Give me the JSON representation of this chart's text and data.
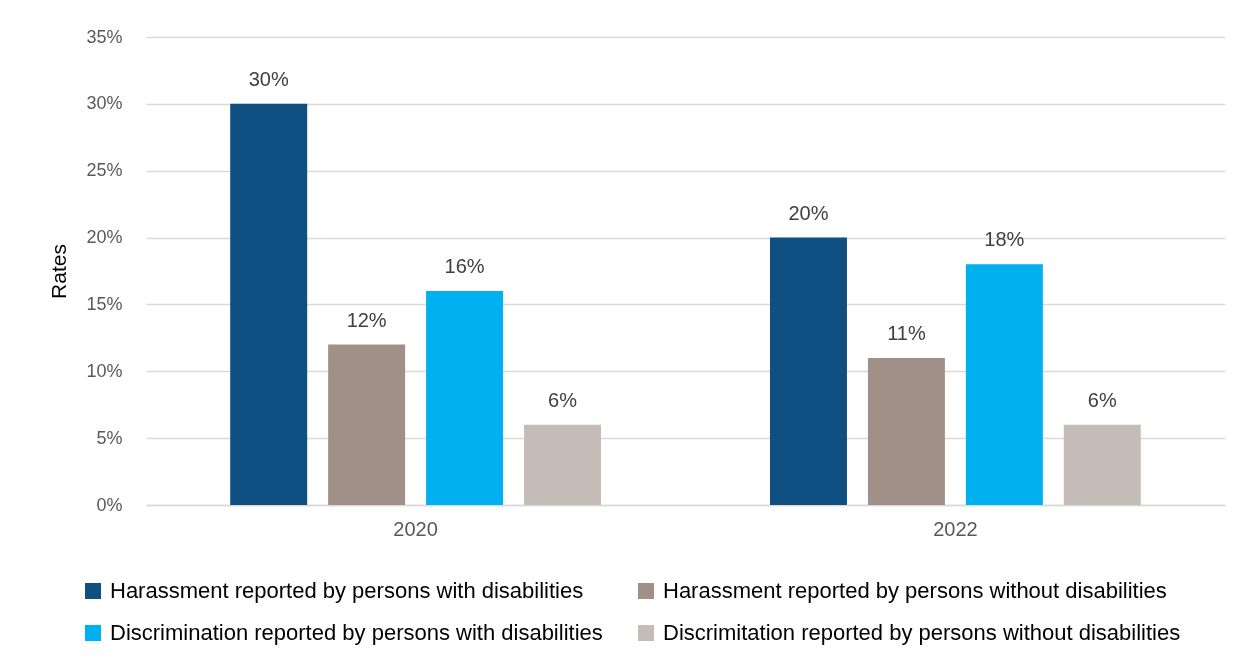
{
  "chart_data": {
    "type": "bar",
    "ylabel": "Rates",
    "categories": [
      "2020",
      "2022"
    ],
    "series": [
      {
        "name": "Harassment reported by persons with disabilities",
        "color": "#104f81",
        "values": [
          30,
          20
        ],
        "value_labels": [
          "30%",
          "20%"
        ]
      },
      {
        "name": "Harassment reported by persons without disabilities",
        "color": "#a09087",
        "values": [
          12,
          11
        ],
        "value_labels": [
          "12%",
          "11%"
        ]
      },
      {
        "name": "Discrimination reported by persons with disabilities",
        "color": "#00b0f0",
        "values": [
          16,
          18
        ],
        "value_labels": [
          "16%",
          "18%"
        ]
      },
      {
        "name": "Discrimitation reported by persons without disabilities",
        "color": "#c5bcb7",
        "values": [
          6,
          6
        ],
        "value_labels": [
          "6%",
          "6%"
        ]
      }
    ],
    "ylim": [
      0,
      35
    ],
    "yticks": [
      {
        "value": 0,
        "label": "0%"
      },
      {
        "value": 5,
        "label": "5%"
      },
      {
        "value": 10,
        "label": "10%"
      },
      {
        "value": 15,
        "label": "15%"
      },
      {
        "value": 20,
        "label": "20%"
      },
      {
        "value": 25,
        "label": "25%"
      },
      {
        "value": 30,
        "label": "30%"
      },
      {
        "value": 35,
        "label": "35%"
      }
    ],
    "grid": "y",
    "legend": "bottom"
  }
}
